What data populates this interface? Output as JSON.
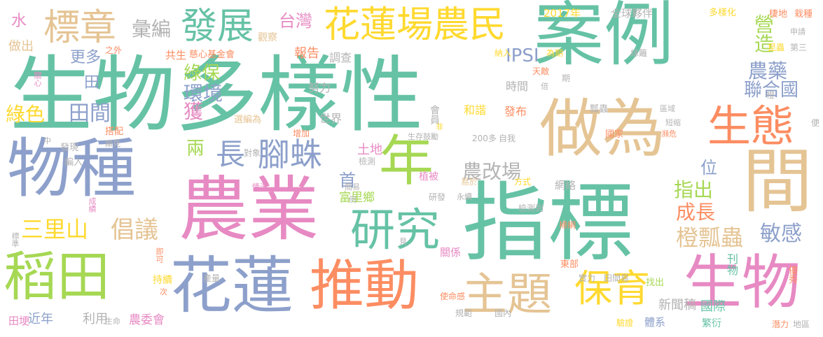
{
  "palette": {
    "teal": "#66c2a5",
    "orange": "#fc8d62",
    "blue": "#8da0cb",
    "pink": "#e78ac3",
    "green": "#a6d854",
    "yellow": "#ffd92f",
    "tan": "#e5c494",
    "gray": "#b3b3b3"
  },
  "words": [
    {
      "text": "生物多樣性",
      "color": "teal"
    },
    {
      "text": "案例",
      "color": "teal"
    },
    {
      "text": "指標",
      "color": "teal"
    },
    {
      "text": "農業",
      "color": "pink"
    },
    {
      "text": "物種",
      "color": "blue"
    },
    {
      "text": "做為",
      "color": "tan"
    },
    {
      "text": "稻田",
      "color": "green"
    },
    {
      "text": "花蓮",
      "color": "blue"
    },
    {
      "text": "推動",
      "color": "orange"
    },
    {
      "text": "生物",
      "color": "pink"
    },
    {
      "text": "年",
      "color": "green"
    },
    {
      "text": "間",
      "color": "tan"
    },
    {
      "text": "生態",
      "color": "orange"
    },
    {
      "text": "研究",
      "color": "teal"
    },
    {
      "text": "主題",
      "color": "tan"
    },
    {
      "text": "保育",
      "color": "yellow"
    },
    {
      "text": "花蓮場農民",
      "color": "yellow"
    },
    {
      "text": "發展",
      "color": "teal"
    },
    {
      "text": "標章",
      "color": "tan"
    },
    {
      "text": "腳蛛",
      "color": "blue"
    },
    {
      "text": "長",
      "color": "blue"
    },
    {
      "text": "三里山",
      "color": "yellow"
    },
    {
      "text": "倡議",
      "color": "tan"
    },
    {
      "text": "橙瓢蟲",
      "color": "tan"
    },
    {
      "text": "敏感",
      "color": "blue"
    },
    {
      "text": "農改場",
      "color": "gray"
    },
    {
      "text": "彙編",
      "color": "gray"
    },
    {
      "text": "台灣",
      "color": "pink"
    },
    {
      "text": "IPSI",
      "color": "blue"
    },
    {
      "text": "農藥",
      "color": "blue"
    },
    {
      "text": "聯合國",
      "color": "blue"
    },
    {
      "text": "營造",
      "color": "green"
    },
    {
      "text": "綠色",
      "color": "yellow"
    },
    {
      "text": "田間",
      "color": "blue"
    },
    {
      "text": "環境",
      "color": "blue"
    },
    {
      "text": "綠保",
      "color": "green"
    },
    {
      "text": "更多",
      "color": "blue"
    },
    {
      "text": "田",
      "color": "blue"
    },
    {
      "text": "水",
      "color": "pink"
    },
    {
      "text": "做出",
      "color": "tan"
    },
    {
      "text": "獲",
      "color": "pink"
    },
    {
      "text": "兩",
      "color": "green"
    },
    {
      "text": "指出",
      "color": "green"
    },
    {
      "text": "成長",
      "color": "orange"
    },
    {
      "text": "首",
      "color": "blue"
    },
    {
      "text": "位",
      "color": "blue"
    },
    {
      "text": "富里鄉",
      "color": "green"
    },
    {
      "text": "土地",
      "color": "pink"
    },
    {
      "text": "新聞稿",
      "color": "gray"
    },
    {
      "text": "國際",
      "color": "teal"
    },
    {
      "text": "近年",
      "color": "blue"
    },
    {
      "text": "利用",
      "color": "gray"
    },
    {
      "text": "農委會",
      "color": "pink"
    },
    {
      "text": "田埂",
      "color": "pink"
    },
    {
      "text": "報告",
      "color": "orange"
    },
    {
      "text": "共生",
      "color": "orange"
    },
    {
      "text": "慈心基金會",
      "color": "orange"
    },
    {
      "text": "世界",
      "color": "gray"
    },
    {
      "text": "努力",
      "color": "gray"
    },
    {
      "text": "調查",
      "color": "gray"
    },
    {
      "text": "時間",
      "color": "gray"
    },
    {
      "text": "和諧",
      "color": "yellow"
    },
    {
      "text": "發布",
      "color": "orange"
    },
    {
      "text": "會員",
      "color": "gray"
    },
    {
      "text": "2017年",
      "color": "yellow"
    },
    {
      "text": "全球夥伴",
      "color": "gray"
    },
    {
      "text": "多樣化",
      "color": "yellow"
    },
    {
      "text": "棲地",
      "color": "orange"
    },
    {
      "text": "栽種",
      "color": "orange"
    },
    {
      "text": "觀察",
      "color": "tan"
    },
    {
      "text": "之外",
      "color": "orange"
    },
    {
      "text": "納入",
      "color": "yellow"
    },
    {
      "text": "為期",
      "color": "yellow"
    },
    {
      "text": "綠籬",
      "color": "gray"
    },
    {
      "text": "天敵",
      "color": "orange"
    },
    {
      "text": "第三",
      "color": "gray"
    },
    {
      "text": "昆蟲",
      "color": "yellow"
    },
    {
      "text": "申請",
      "color": "gray"
    },
    {
      "text": "關心",
      "color": "pink"
    },
    {
      "text": "選編為",
      "color": "tan"
    },
    {
      "text": "搭配",
      "color": "orange"
    },
    {
      "text": "顯見",
      "color": "gray"
    },
    {
      "text": "增加",
      "color": "orange"
    },
    {
      "text": "生存鼓勵",
      "color": "gray"
    },
    {
      "text": "200多",
      "color": "gray"
    },
    {
      "text": "自我",
      "color": "gray"
    },
    {
      "text": "非",
      "color": "yellow"
    },
    {
      "text": "瓢蟲",
      "color": "gray"
    },
    {
      "text": "區域",
      "color": "gray"
    },
    {
      "text": "短缩",
      "color": "gray"
    },
    {
      "text": "國家",
      "color": "orange"
    },
    {
      "text": "瀕危",
      "color": "orange"
    },
    {
      "text": "便",
      "color": "gray"
    },
    {
      "text": "中",
      "color": "gray"
    },
    {
      "text": "發現",
      "color": "gray"
    },
    {
      "text": "對象",
      "color": "gray"
    },
    {
      "text": "檢測",
      "color": "gray"
    },
    {
      "text": "編入",
      "color": "gray"
    },
    {
      "text": "植被",
      "color": "pink"
    },
    {
      "text": "易於",
      "color": "tan"
    },
    {
      "text": "方式",
      "color": "yellow"
    },
    {
      "text": "網絡",
      "color": "gray"
    },
    {
      "text": "情況",
      "color": "pink"
    },
    {
      "text": "簡易",
      "color": "gray"
    },
    {
      "text": "研發",
      "color": "gray"
    },
    {
      "text": "永續",
      "color": "gray"
    },
    {
      "text": "例",
      "color": "gray"
    },
    {
      "text": "檢測到",
      "color": "gray"
    },
    {
      "text": "掃網",
      "color": "orange"
    },
    {
      "text": "成績",
      "color": "pink"
    },
    {
      "text": "標準",
      "color": "gray"
    },
    {
      "text": "即可",
      "color": "orange"
    },
    {
      "text": "見",
      "color": "gray"
    },
    {
      "text": "關係",
      "color": "pink"
    },
    {
      "text": "刊物",
      "color": "teal"
    },
    {
      "text": "東部",
      "color": "orange"
    },
    {
      "text": "優秀",
      "color": "orange"
    },
    {
      "text": "持續",
      "color": "yellow"
    },
    {
      "text": "產量",
      "color": "gray"
    },
    {
      "text": "次",
      "color": "orange"
    },
    {
      "text": "生命",
      "color": "gray"
    },
    {
      "text": "使命感",
      "color": "orange"
    },
    {
      "text": "規範",
      "color": "gray"
    },
    {
      "text": "國內",
      "color": "gray"
    },
    {
      "text": "實力",
      "color": "gray"
    },
    {
      "text": "田間易",
      "color": "gray"
    },
    {
      "text": "找出",
      "color": "green"
    },
    {
      "text": "驗證",
      "color": "yellow"
    },
    {
      "text": "體系",
      "color": "blue"
    },
    {
      "text": "繁衍",
      "color": "teal"
    },
    {
      "text": "潛力",
      "color": "orange"
    },
    {
      "text": "地區",
      "color": "gray"
    },
    {
      "text": "倍",
      "color": "gray"
    },
    {
      "text": "期",
      "color": "gray"
    },
    {
      "text": "橙",
      "color": "gray"
    }
  ]
}
